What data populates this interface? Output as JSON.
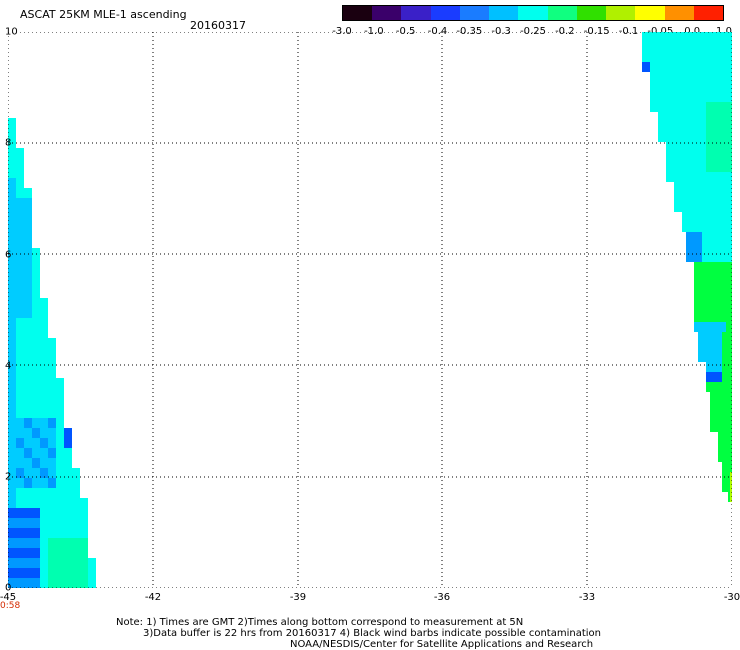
{
  "header": {
    "title": "ASCAT 25KM MLE-1 ascending",
    "date": "20160317"
  },
  "colorbar": {
    "labels": [
      "-3.0",
      "-1.0",
      "-0.5",
      "-0.4",
      "-0.35",
      "-0.3",
      "-0.25",
      "-0.2",
      "-0.15",
      "-0.1",
      "-0.05",
      "0.0",
      "1.0"
    ],
    "colors": [
      "#1a0010",
      "#3a006a",
      "#3a20c8",
      "#1a3cff",
      "#1a7cff",
      "#00c0ff",
      "#00ffee",
      "#10ff80",
      "#30e000",
      "#b0f000",
      "#ffff00",
      "#ff9000",
      "#ff2000"
    ]
  },
  "map": {
    "x_ticks": [
      "-45",
      "-42",
      "-39",
      "-36",
      "-33",
      "-30"
    ],
    "y_ticks": [
      "0",
      "2",
      "4",
      "6",
      "8",
      "10"
    ],
    "time_label": "0:58",
    "colors": {
      "cyan": "#00ffee",
      "light_blue": "#00ccff",
      "blue": "#0099ff",
      "deep_blue": "#0055ff",
      "aqua_green": "#00ffb0",
      "green": "#00ff40",
      "yellow_green": "#b0ff00"
    }
  },
  "notes": {
    "line1": "Note: 1) Times are GMT 2)Times along bottom correspond to measurement at 5N",
    "line2": "3)Data buffer is 22 hrs from 20160317 4) Black wind barbs indicate possible contamination",
    "line3": "NOAA/NESDIS/Center for Satellite Applications and Research"
  }
}
